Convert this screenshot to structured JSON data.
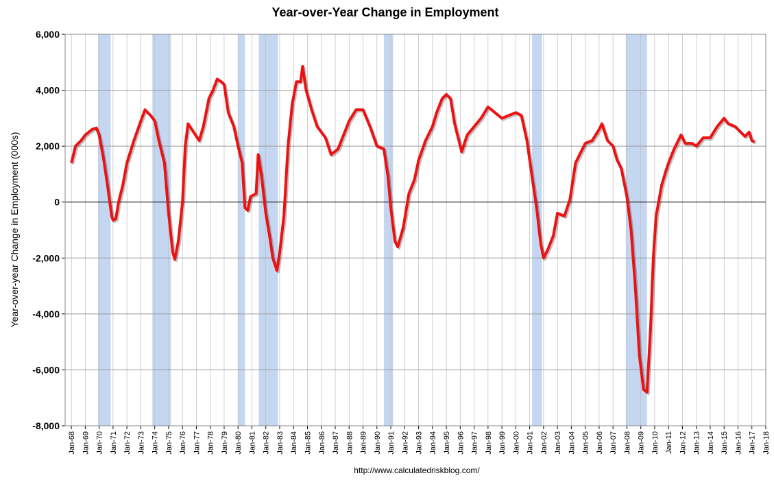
{
  "chart_data": {
    "type": "line",
    "title": "Year-over-Year Change in Employment",
    "ylabel": "Year-over-year Change in Employment (000s)",
    "source": "http://www.calculatedriskblog.com/",
    "xlim": [
      1967.55,
      2018
    ],
    "ylim": [
      -8000,
      6000
    ],
    "yticks": [
      {
        "value": -8000,
        "label": "-8,000"
      },
      {
        "value": -6000,
        "label": "-6,000"
      },
      {
        "value": -4000,
        "label": "-4,000"
      },
      {
        "value": -2000,
        "label": "-2,000"
      },
      0,
      {
        "value": 2000,
        "label": "2,000"
      },
      {
        "value": 4000,
        "label": "4,000"
      },
      {
        "value": 6000,
        "label": "6,000"
      }
    ],
    "xticks": [
      {
        "value": 1968,
        "label": "Jan-68"
      },
      {
        "value": 1969,
        "label": "Jan-69"
      },
      {
        "value": 1970,
        "label": "Jan-70"
      },
      {
        "value": 1971,
        "label": "Jan-71"
      },
      {
        "value": 1972,
        "label": "Jan-72"
      },
      {
        "value": 1973,
        "label": "Jan-73"
      },
      {
        "value": 1974,
        "label": "Jan-74"
      },
      {
        "value": 1975,
        "label": "Jan-75"
      },
      {
        "value": 1976,
        "label": "Jan-76"
      },
      {
        "value": 1977,
        "label": "Jan-77"
      },
      {
        "value": 1978,
        "label": "Jan-78"
      },
      {
        "value": 1979,
        "label": "Jan-79"
      },
      {
        "value": 1980,
        "label": "Jan-80"
      },
      {
        "value": 1981,
        "label": "Jan-81"
      },
      {
        "value": 1982,
        "label": "Jan-82"
      },
      {
        "value": 1983,
        "label": "Jan-83"
      },
      {
        "value": 1984,
        "label": "Jan-84"
      },
      {
        "value": 1985,
        "label": "Jan-85"
      },
      {
        "value": 1986,
        "label": "Jan-86"
      },
      {
        "value": 1987,
        "label": "Jan-87"
      },
      {
        "value": 1988,
        "label": "Jan-88"
      },
      {
        "value": 1989,
        "label": "Jan-89"
      },
      {
        "value": 1990,
        "label": "Jan-90"
      },
      {
        "value": 1991,
        "label": "Jan-91"
      },
      {
        "value": 1992,
        "label": "Jan-92"
      },
      {
        "value": 1993,
        "label": "Jan-93"
      },
      {
        "value": 1994,
        "label": "Jan-94"
      },
      {
        "value": 1995,
        "label": "Jan-95"
      },
      {
        "value": 1996,
        "label": "Jan-96"
      },
      {
        "value": 1997,
        "label": "Jan-97"
      },
      {
        "value": 1998,
        "label": "Jan-98"
      },
      {
        "value": 1999,
        "label": "Jan-99"
      },
      {
        "value": 2000,
        "label": "Jan-00"
      },
      {
        "value": 2001,
        "label": "Jan-01"
      },
      {
        "value": 2002,
        "label": "Jan-02"
      },
      {
        "value": 2003,
        "label": "Jan-03"
      },
      {
        "value": 2004,
        "label": "Jan-04"
      },
      {
        "value": 2005,
        "label": "Jan-05"
      },
      {
        "value": 2006,
        "label": "Jan-06"
      },
      {
        "value": 2007,
        "label": "Jan-07"
      },
      {
        "value": 2008,
        "label": "Jan-08"
      },
      {
        "value": 2009,
        "label": "Jan-09"
      },
      {
        "value": 2010,
        "label": "Jan-10"
      },
      {
        "value": 2011,
        "label": "Jan-11"
      },
      {
        "value": 2012,
        "label": "Jan-12"
      },
      {
        "value": 2013,
        "label": "Jan-13"
      },
      {
        "value": 2014,
        "label": "Jan-14"
      },
      {
        "value": 2015,
        "label": "Jan-15"
      },
      {
        "value": 2016,
        "label": "Jan-16"
      },
      {
        "value": 2017,
        "label": "Jan-17"
      },
      {
        "value": 2018,
        "label": "Jan-18"
      }
    ],
    "grid": true,
    "recession_color": "#c5d7f0",
    "recessions": [
      [
        1969.92,
        1970.83
      ],
      [
        1973.83,
        1975.17
      ],
      [
        1980.0,
        1980.5
      ],
      [
        1981.5,
        1982.88
      ],
      [
        1990.5,
        1991.17
      ],
      [
        2001.17,
        2001.88
      ],
      [
        2007.92,
        2009.45
      ]
    ],
    "x": [
      1968.0,
      1968.3,
      1968.7,
      1969.0,
      1969.5,
      1969.8,
      1970.0,
      1970.3,
      1970.6,
      1970.9,
      1971.0,
      1971.2,
      1971.4,
      1971.7,
      1972.0,
      1972.5,
      1973.0,
      1973.3,
      1973.7,
      1974.0,
      1974.3,
      1974.7,
      1975.0,
      1975.3,
      1975.45,
      1975.7,
      1976.0,
      1976.2,
      1976.4,
      1976.8,
      1977.2,
      1977.5,
      1977.9,
      1978.2,
      1978.5,
      1978.8,
      1979.0,
      1979.3,
      1979.7,
      1980.0,
      1980.3,
      1980.5,
      1980.7,
      1980.9,
      1981.3,
      1981.45,
      1981.7,
      1982.0,
      1982.3,
      1982.5,
      1982.8,
      1983.0,
      1983.3,
      1983.6,
      1983.9,
      1984.2,
      1984.5,
      1984.65,
      1984.9,
      1985.3,
      1985.7,
      1986.3,
      1986.7,
      1987.2,
      1987.6,
      1988.0,
      1988.5,
      1989.0,
      1989.5,
      1990.0,
      1990.5,
      1990.8,
      1991.0,
      1991.3,
      1991.5,
      1991.9,
      1992.3,
      1992.7,
      1993.0,
      1993.5,
      1994.0,
      1994.3,
      1994.7,
      1995.0,
      1995.3,
      1995.6,
      1995.9,
      1996.1,
      1996.5,
      1997.0,
      1997.5,
      1998.0,
      1998.5,
      1999.0,
      1999.5,
      2000.0,
      2000.4,
      2000.8,
      2001.2,
      2001.5,
      2001.8,
      2002.0,
      2002.3,
      2002.7,
      2003.0,
      2003.5,
      2003.9,
      2004.3,
      2004.7,
      2005.0,
      2005.5,
      2006.0,
      2006.2,
      2006.6,
      2007.0,
      2007.3,
      2007.6,
      2008.0,
      2008.3,
      2008.6,
      2008.9,
      2009.2,
      2009.45,
      2009.7,
      2009.9,
      2010.1,
      2010.5,
      2010.8,
      2011.0,
      2011.4,
      2011.9,
      2012.2,
      2012.7,
      2013.0,
      2013.5,
      2014.0,
      2014.5,
      2015.0,
      2015.3,
      2015.8,
      2016.2,
      2016.5,
      2016.8,
      2017.0,
      2017.2
    ],
    "series": [
      {
        "color": "#ee1111",
        "values": [
          1400,
          2000,
          2200,
          2400,
          2600,
          2650,
          2400,
          1600,
          600,
          -500,
          -650,
          -600,
          0,
          600,
          1400,
          2200,
          2900,
          3300,
          3100,
          2900,
          2200,
          1400,
          -400,
          -1800,
          -2050,
          -1400,
          0,
          2000,
          2800,
          2500,
          2200,
          2700,
          3700,
          4000,
          4400,
          4300,
          4200,
          3200,
          2700,
          2000,
          1400,
          -200,
          -300,
          200,
          300,
          1700,
          900,
          -400,
          -1300,
          -2000,
          -2450,
          -1800,
          -500,
          2000,
          3500,
          4300,
          4300,
          4850,
          4000,
          3300,
          2700,
          2300,
          1700,
          1900,
          2400,
          2900,
          3300,
          3300,
          2700,
          2000,
          1900,
          900,
          -200,
          -1400,
          -1600,
          -900,
          300,
          800,
          1500,
          2200,
          2700,
          3200,
          3700,
          3850,
          3700,
          2800,
          2200,
          1800,
          2400,
          2700,
          3000,
          3400,
          3200,
          3000,
          3100,
          3200,
          3100,
          2200,
          800,
          -200,
          -1500,
          -2000,
          -1700,
          -1200,
          -400,
          -500,
          100,
          1400,
          1800,
          2100,
          2200,
          2600,
          2800,
          2200,
          2000,
          1500,
          1200,
          200,
          -1000,
          -3000,
          -5500,
          -6700,
          -6800,
          -4500,
          -2000,
          -500,
          600,
          1100,
          1400,
          1900,
          2400,
          2100,
          2100,
          2000,
          2300,
          2300,
          2700,
          3000,
          2800,
          2700,
          2500,
          2350,
          2500,
          2200,
          2150
        ]
      }
    ]
  }
}
